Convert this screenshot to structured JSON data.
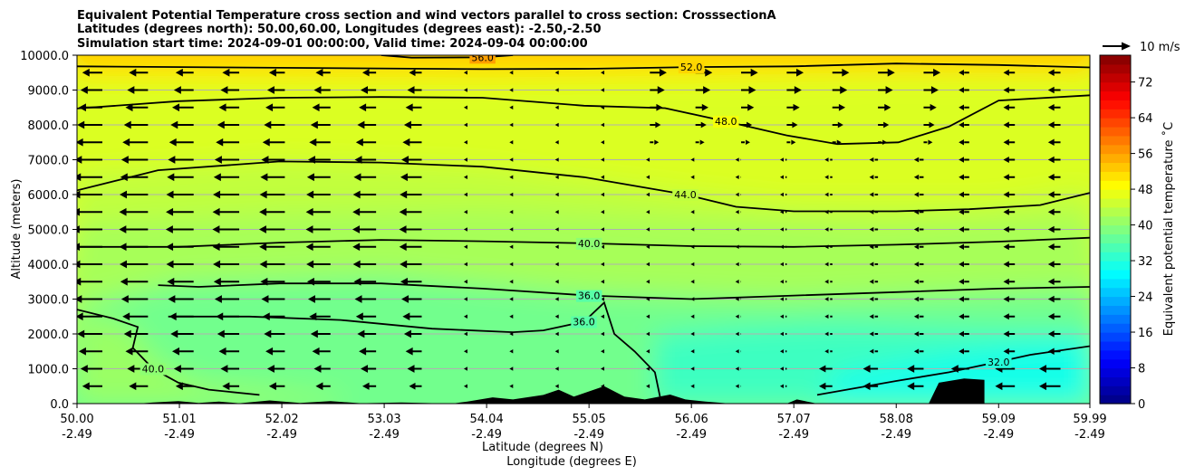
{
  "chart_data": {
    "type": "heatmap",
    "title": [
      "Equivalent Potential Temperature cross section and wind vectors parallel to cross section: CrosssectionA",
      "Latitudes (degrees north): 50.00,60.00, Longitudes (degrees east): -2.50,-2.50",
      "Simulation start time: 2024-09-01 00:00:00, Valid time: 2024-09-04 00:00:00"
    ],
    "ylabel": "Altitude (meters)",
    "xlabel": "Latitude (degrees N)",
    "xlabel2": "Longitude (degrees E)",
    "ylim": [
      0,
      10000
    ],
    "xlim": [
      50.0,
      59.99
    ],
    "yticks": [
      {
        "value": 0,
        "label": "0.0"
      },
      {
        "value": 1000,
        "label": "1000.0"
      },
      {
        "value": 2000,
        "label": "2000.0"
      },
      {
        "value": 3000,
        "label": "3000.0"
      },
      {
        "value": 4000,
        "label": "4000.0"
      },
      {
        "value": 5000,
        "label": "5000.0"
      },
      {
        "value": 6000,
        "label": "6000.0"
      },
      {
        "value": 7000,
        "label": "7000.0"
      },
      {
        "value": 8000,
        "label": "8000.0"
      },
      {
        "value": 9000,
        "label": "9000.0"
      },
      {
        "value": 10000,
        "label": "10000.0"
      }
    ],
    "xticks": [
      {
        "lat": "50.00",
        "lon": "-2.49",
        "value": 50.0
      },
      {
        "lat": "51.01",
        "lon": "-2.49",
        "value": 51.01
      },
      {
        "lat": "52.02",
        "lon": "-2.49",
        "value": 52.02
      },
      {
        "lat": "53.03",
        "lon": "-2.49",
        "value": 53.03
      },
      {
        "lat": "54.04",
        "lon": "-2.49",
        "value": 54.04
      },
      {
        "lat": "55.05",
        "lon": "-2.49",
        "value": 55.05
      },
      {
        "lat": "56.06",
        "lon": "-2.49",
        "value": 56.06
      },
      {
        "lat": "57.07",
        "lon": "-2.49",
        "value": 57.07
      },
      {
        "lat": "58.08",
        "lon": "-2.49",
        "value": 58.08
      },
      {
        "lat": "59.09",
        "lon": "-2.49",
        "value": 59.09
      },
      {
        "lat": "59.99",
        "lon": "-2.49",
        "value": 59.99
      }
    ],
    "grid": true,
    "colorbar": {
      "label": "Equivalent potential temperature $^\\circ$C",
      "label_text": "Equivalent potential temperature ˚C",
      "min": 0,
      "max": 78,
      "step": 2,
      "ticks": [
        "0",
        "8",
        "16",
        "24",
        "32",
        "40",
        "48",
        "56",
        "64",
        "72"
      ],
      "tick_values": [
        0,
        8,
        16,
        24,
        32,
        40,
        48,
        56,
        64,
        72
      ],
      "colormap": "jet"
    },
    "quiver_key": {
      "label": "10 m/s",
      "value": 10
    },
    "contours": [
      {
        "level": 52.0,
        "label": "52.0",
        "points": [
          [
            50.0,
            9680
          ],
          [
            52.0,
            9640
          ],
          [
            54.0,
            9600
          ],
          [
            55.05,
            9610
          ],
          [
            56.06,
            9660
          ],
          [
            57.07,
            9680
          ],
          [
            58.08,
            9760
          ],
          [
            59.09,
            9720
          ],
          [
            59.99,
            9650
          ]
        ]
      },
      {
        "level": 56.0,
        "label": "56.0",
        "points": [
          [
            53.0,
            10000
          ],
          [
            53.3,
            9930
          ],
          [
            54.0,
            9940
          ],
          [
            54.3,
            10000
          ]
        ]
      },
      {
        "level": 48.0,
        "label": "48.0",
        "points": [
          [
            50.0,
            8470
          ],
          [
            51.0,
            8680
          ],
          [
            52.0,
            8780
          ],
          [
            53.0,
            8800
          ],
          [
            54.0,
            8780
          ],
          [
            55.0,
            8550
          ],
          [
            55.8,
            8480
          ],
          [
            56.4,
            8100
          ],
          [
            57.0,
            7700
          ],
          [
            57.5,
            7450
          ],
          [
            58.1,
            7500
          ],
          [
            58.6,
            7950
          ],
          [
            59.09,
            8700
          ],
          [
            59.99,
            8850
          ]
        ]
      },
      {
        "level": 44.0,
        "label": "44.0",
        "points": [
          [
            50.0,
            6120
          ],
          [
            50.8,
            6700
          ],
          [
            52.0,
            6950
          ],
          [
            53.0,
            6920
          ],
          [
            54.0,
            6800
          ],
          [
            55.0,
            6500
          ],
          [
            56.0,
            6000
          ],
          [
            56.5,
            5650
          ],
          [
            57.07,
            5520
          ],
          [
            58.08,
            5520
          ],
          [
            58.8,
            5580
          ],
          [
            59.5,
            5700
          ],
          [
            59.99,
            6050
          ]
        ]
      },
      {
        "level": 40.0,
        "label": "40.0",
        "points": [
          [
            50.0,
            4500
          ],
          [
            51.0,
            4500
          ],
          [
            52.0,
            4620
          ],
          [
            53.0,
            4700
          ],
          [
            54.0,
            4660
          ],
          [
            55.05,
            4600
          ],
          [
            56.06,
            4520
          ],
          [
            57.07,
            4500
          ],
          [
            58.08,
            4560
          ],
          [
            59.09,
            4650
          ],
          [
            59.99,
            4760
          ]
        ]
      },
      {
        "level": 36.0,
        "label": "36.0",
        "points": [
          [
            50.8,
            3400
          ],
          [
            51.2,
            3350
          ],
          [
            52.0,
            3450
          ],
          [
            53.0,
            3450
          ],
          [
            54.0,
            3300
          ],
          [
            55.05,
            3100
          ],
          [
            56.06,
            3000
          ],
          [
            57.07,
            3100
          ],
          [
            58.08,
            3200
          ],
          [
            59.09,
            3300
          ],
          [
            59.99,
            3350
          ]
        ]
      },
      {
        "level": 40.0,
        "label": "40.0",
        "points": [
          [
            50.0,
            2700
          ],
          [
            50.35,
            2450
          ],
          [
            50.6,
            2200
          ],
          [
            50.55,
            1600
          ],
          [
            50.75,
            1000
          ],
          [
            51.0,
            600
          ],
          [
            51.3,
            400
          ],
          [
            51.8,
            250
          ]
        ]
      },
      {
        "level": 36.0,
        "label": "36.0",
        "points": [
          [
            50.9,
            2500
          ],
          [
            51.7,
            2500
          ],
          [
            52.6,
            2400
          ],
          [
            53.5,
            2150
          ],
          [
            54.3,
            2050
          ],
          [
            54.6,
            2100
          ],
          [
            55.0,
            2350
          ],
          [
            55.2,
            2900
          ],
          [
            55.3,
            2000
          ],
          [
            55.5,
            1500
          ],
          [
            55.7,
            900
          ],
          [
            55.75,
            200
          ]
        ]
      },
      {
        "level": 32.0,
        "label": "32.0",
        "points": [
          [
            57.3,
            250
          ],
          [
            58.08,
            650
          ],
          [
            58.6,
            900
          ],
          [
            59.09,
            1200
          ],
          [
            59.4,
            1400
          ],
          [
            59.99,
            1650
          ]
        ]
      }
    ]
  }
}
